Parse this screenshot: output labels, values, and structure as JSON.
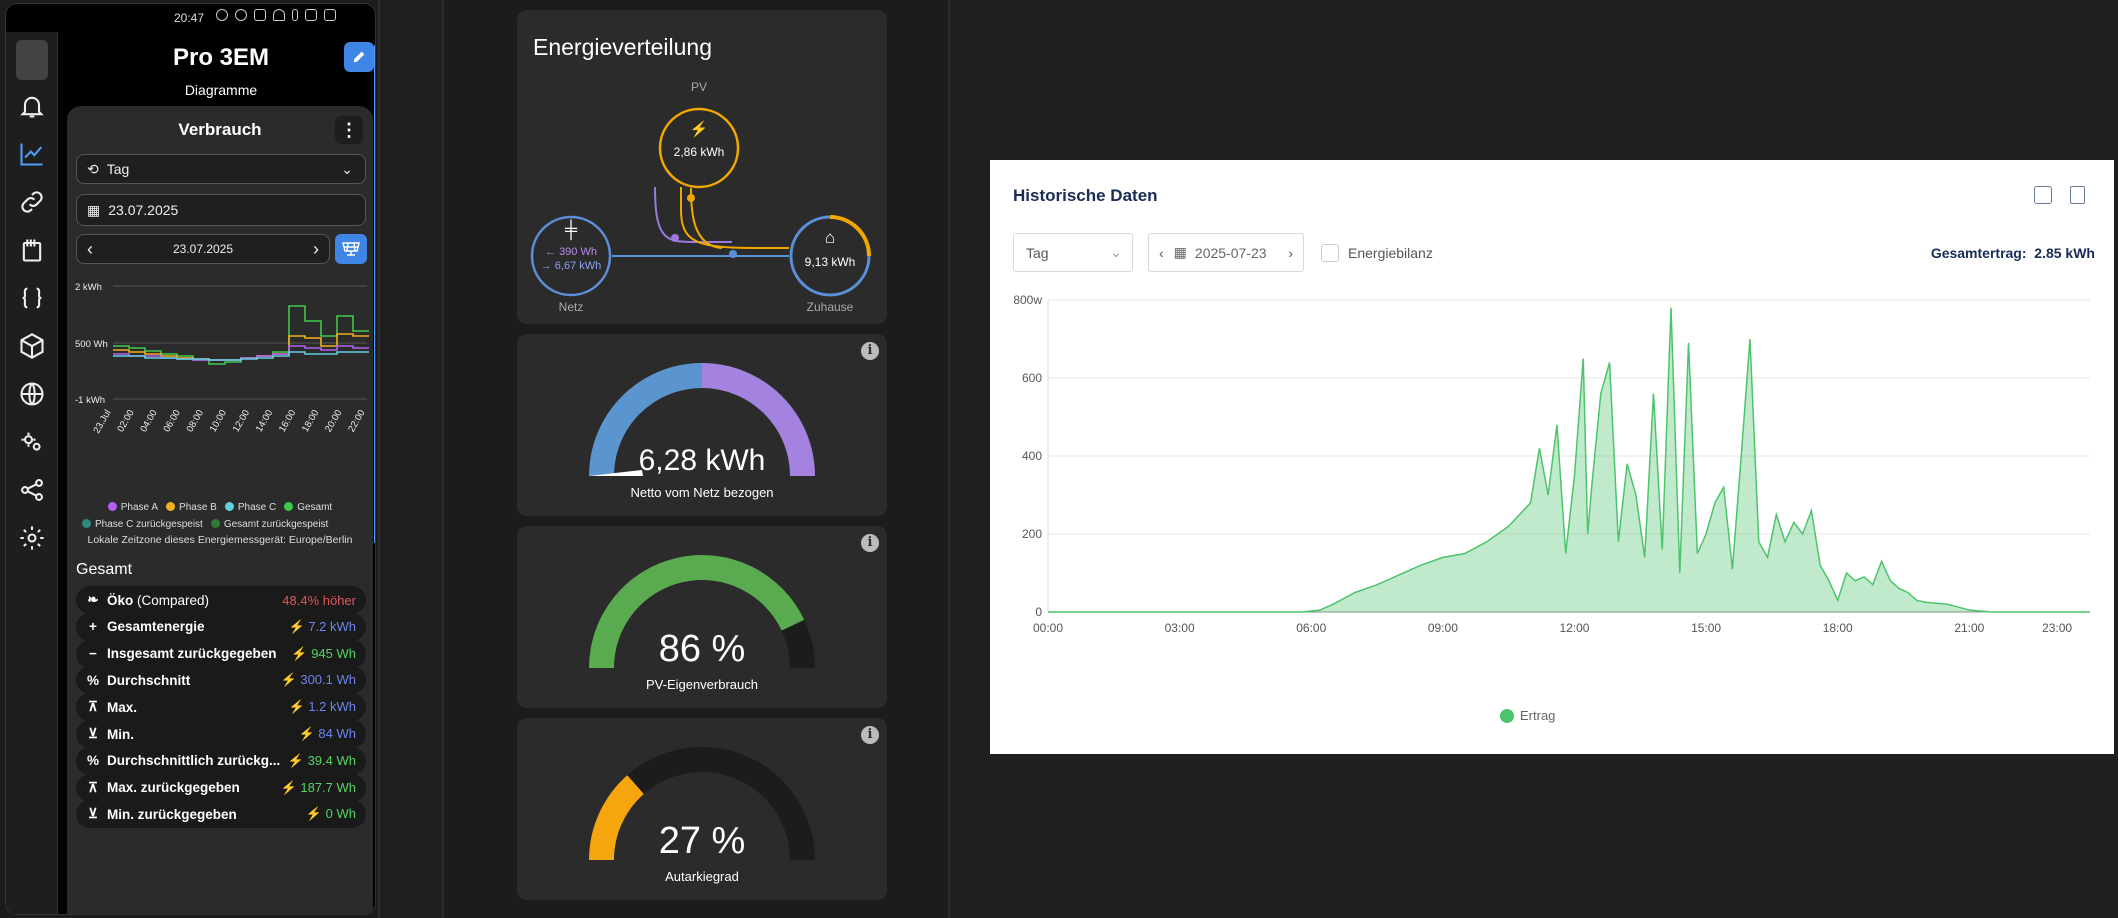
{
  "status_bar": {
    "time": "20:47"
  },
  "app": {
    "title": "Pro 3EM",
    "subtitle": "Diagramme"
  },
  "verbrauch": {
    "title": "Verbrauch",
    "period_select": "Tag",
    "date_input": "23.07.2025",
    "date_nav": "23.07.2025",
    "mini_chart": {
      "y_labels": [
        "2 kWh",
        "500 Wh",
        "-1 kWh"
      ],
      "x_labels": [
        "23.Jul",
        "02:00",
        "04:00",
        "06:00",
        "08:00",
        "10:00",
        "12:00",
        "14:00",
        "16:00",
        "18:00",
        "20:00",
        "22:00"
      ],
      "legend": [
        {
          "name": "Phase A",
          "color": "#b45ff0"
        },
        {
          "name": "Phase B",
          "color": "#f0b020"
        },
        {
          "name": "Phase C",
          "color": "#5fd0e0"
        },
        {
          "name": "Gesamt",
          "color": "#3ec94a"
        },
        {
          "name": "Phase C zurückgespeist",
          "color": "#2e8a80"
        },
        {
          "name": "Gesamt zurückgespeist",
          "color": "#2f7a38"
        }
      ]
    },
    "timezone_note": "Lokale Zeitzone dieses Energiemessgerät: Europe/Berlin"
  },
  "gesamt": {
    "heading": "Gesamt",
    "items": [
      {
        "label": "Öko",
        "suffix": "(Compared)",
        "value": "48.4% höher",
        "color": "#e05555",
        "icon": "leaf-icon"
      },
      {
        "label": "Gesamtenergie",
        "value": "7.2 kWh",
        "color": "#6f83f0",
        "icon": "plus-icon"
      },
      {
        "label": "Insgesamt zurückgegeben",
        "value": "945 Wh",
        "color": "#56d364",
        "icon": "minus-icon"
      },
      {
        "label": "Durchschnitt",
        "value": "300.1 Wh",
        "color": "#6f83f0",
        "icon": "percent-icon"
      },
      {
        "label": "Max.",
        "value": "1.2 kWh",
        "color": "#6f83f0",
        "icon": "max-icon"
      },
      {
        "label": "Min.",
        "value": "84 Wh",
        "color": "#6f83f0",
        "icon": "min-icon"
      },
      {
        "label": "Durchschnittlich zurückg...",
        "value": "39.4 Wh",
        "color": "#56d364",
        "icon": "percent-icon"
      },
      {
        "label": "Max. zurückgegeben",
        "value": "187.7 Wh",
        "color": "#56d364",
        "icon": "max-icon"
      },
      {
        "label": "Min. zurückgegeben",
        "value": "0 Wh",
        "color": "#56d364",
        "icon": "min-icon"
      }
    ]
  },
  "energy": {
    "title": "Energieverteilung",
    "pv_label": "PV",
    "pv_value": "2,86 kWh",
    "grid_in": "390 Wh",
    "grid_out": "6,67 kWh",
    "grid_label": "Netz",
    "home_value": "9,13 kWh",
    "home_label": "Zuhause"
  },
  "gauges": [
    {
      "value": "6,28 kWh",
      "label": "Netto vom Netz bezogen"
    },
    {
      "value": "86 %",
      "label": "PV-Eigenverbrauch",
      "fraction": 0.86
    },
    {
      "value": "27 %",
      "label": "Autarkiegrad",
      "fraction": 0.27
    }
  ],
  "historic": {
    "title": "Historische Daten",
    "period": "Tag",
    "date": "2025-07-23",
    "checkbox_label": "Energiebilanz",
    "total_label": "Gesamtertrag:",
    "total_value": "2.85 kWh",
    "legend": "Ertrag"
  },
  "chart_data": {
    "type": "area",
    "title": "Historische Daten",
    "ylabel": "",
    "y_ticks": [
      "800w",
      "600",
      "400",
      "200",
      "0"
    ],
    "x_ticks": [
      "00:00",
      "03:00",
      "06:00",
      "09:00",
      "12:00",
      "15:00",
      "18:00",
      "21:00",
      "23:00"
    ],
    "ylim": [
      0,
      800
    ],
    "xlim": [
      0,
      23.75
    ],
    "series": [
      {
        "name": "Ertrag",
        "color": "#4cc46c",
        "x": [
          0,
          5.8,
          6.2,
          6.5,
          7.0,
          7.5,
          8.0,
          8.5,
          9.0,
          9.5,
          10.0,
          10.5,
          11.0,
          11.2,
          11.4,
          11.6,
          11.8,
          12.0,
          12.2,
          12.3,
          12.4,
          12.6,
          12.8,
          13.0,
          13.2,
          13.4,
          13.6,
          13.8,
          14.0,
          14.2,
          14.4,
          14.6,
          14.8,
          15.0,
          15.2,
          15.4,
          15.6,
          15.8,
          16.0,
          16.2,
          16.4,
          16.6,
          16.8,
          17.0,
          17.2,
          17.4,
          17.6,
          17.8,
          18.0,
          18.2,
          18.4,
          18.6,
          18.8,
          19.0,
          19.2,
          19.4,
          19.6,
          19.8,
          20.0,
          20.5,
          21.0,
          21.5,
          23.75
        ],
        "values": [
          0,
          0,
          5,
          20,
          50,
          70,
          95,
          120,
          140,
          150,
          180,
          220,
          280,
          420,
          300,
          480,
          150,
          350,
          650,
          200,
          330,
          560,
          640,
          180,
          380,
          300,
          140,
          560,
          160,
          780,
          100,
          690,
          150,
          200,
          280,
          320,
          110,
          400,
          700,
          180,
          140,
          250,
          180,
          230,
          200,
          260,
          120,
          80,
          30,
          100,
          80,
          90,
          70,
          130,
          80,
          60,
          50,
          30,
          25,
          20,
          5,
          0,
          0
        ]
      }
    ]
  }
}
